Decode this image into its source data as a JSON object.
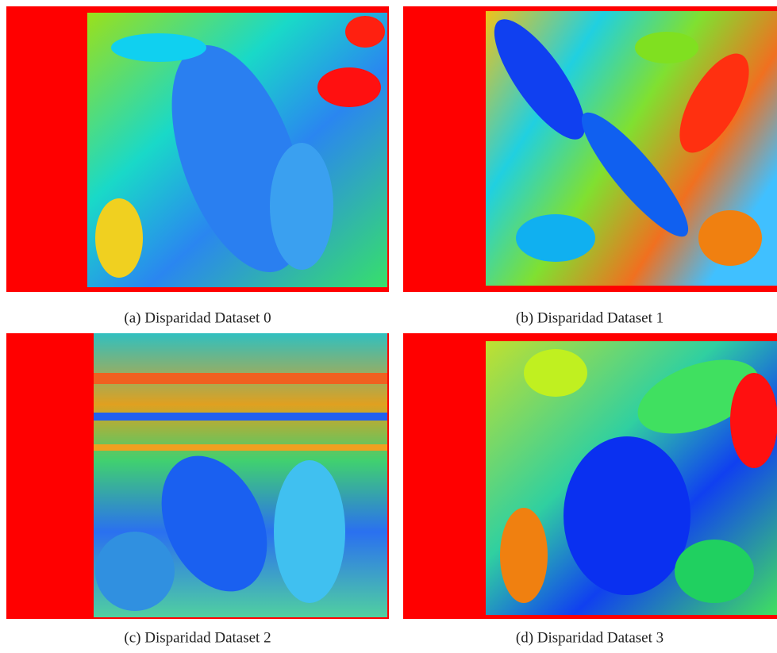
{
  "figure": {
    "panels": [
      {
        "caption": "(a) Disparidad Dataset 0"
      },
      {
        "caption": "(b) Disparidad Dataset 1"
      },
      {
        "caption": "(c) Disparidad Dataset 2"
      },
      {
        "caption": "(d) Disparidad Dataset 3"
      }
    ]
  }
}
